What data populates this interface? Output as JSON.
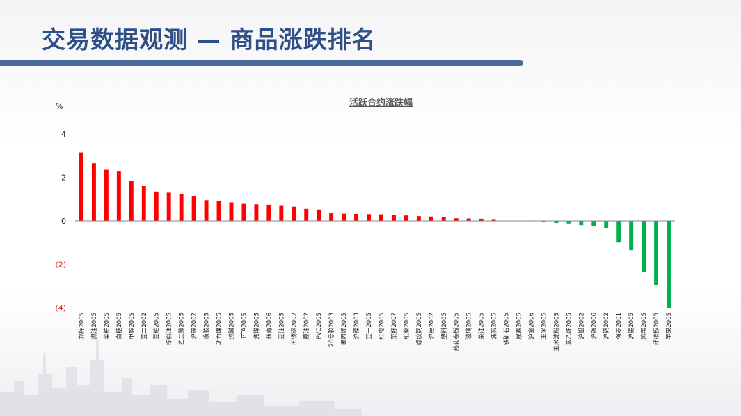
{
  "slide": {
    "title": "交易数据观测 — 商品涨跌排名"
  },
  "chart_data": {
    "type": "bar",
    "title": "活跃合约涨跌幅",
    "unit": "%",
    "ylim": [
      -4,
      4
    ],
    "yticks": [
      {
        "value": 4,
        "label": "4"
      },
      {
        "value": 2,
        "label": "2"
      },
      {
        "value": 0,
        "label": "0"
      },
      {
        "value": -2,
        "label": "(2)"
      },
      {
        "value": -4,
        "label": "(4)"
      }
    ],
    "positive_color": "#ff0000",
    "negative_color": "#00b050",
    "negative_tick_color": "#e02020",
    "categories": [
      "郑棉2005",
      "燃油2005",
      "菜粕2005",
      "白糖2005",
      "甲醇2005",
      "豆二2002",
      "豆粕2005",
      "棕榈油2005",
      "乙二醇2005",
      "沪锌2002",
      "橡胶2005",
      "动力煤2005",
      "纯碱2005",
      "PTA2005",
      "焦煤2005",
      "沥青2006",
      "豆油2005",
      "不锈钢2002",
      "原油2002",
      "PVC2005",
      "20号胶2003",
      "聚丙烯2005",
      "沪镍2003",
      "豆一2005",
      "红枣2005",
      "菜籽2007",
      "纸浆2005",
      "螺纹钢2005",
      "沪铝2002",
      "塑料2005",
      "热轧卷板2005",
      "玻璃2005",
      "菜油2005",
      "焦炭2005",
      "铁矿石2005",
      "尿素2005",
      "沪金2006",
      "玉米2005",
      "玉米淀粉2005",
      "苯乙烯2005",
      "沪铅2002",
      "沪银2006",
      "沪铜2002",
      "强麦2001",
      "沪锡2005",
      "鸡蛋2005",
      "纤维板2005",
      "苹果2005"
    ],
    "values": [
      3.15,
      2.65,
      2.35,
      2.3,
      1.85,
      1.6,
      1.35,
      1.3,
      1.25,
      1.15,
      0.95,
      0.9,
      0.85,
      0.78,
      0.76,
      0.74,
      0.72,
      0.65,
      0.55,
      0.52,
      0.35,
      0.33,
      0.32,
      0.31,
      0.3,
      0.27,
      0.25,
      0.22,
      0.2,
      0.18,
      0.12,
      0.11,
      0.1,
      0.05,
      0.01,
      0.01,
      -0.01,
      -0.05,
      -0.1,
      -0.12,
      -0.2,
      -0.25,
      -0.35,
      -1.0,
      -1.35,
      -2.35,
      -2.95,
      -4.0
    ]
  }
}
